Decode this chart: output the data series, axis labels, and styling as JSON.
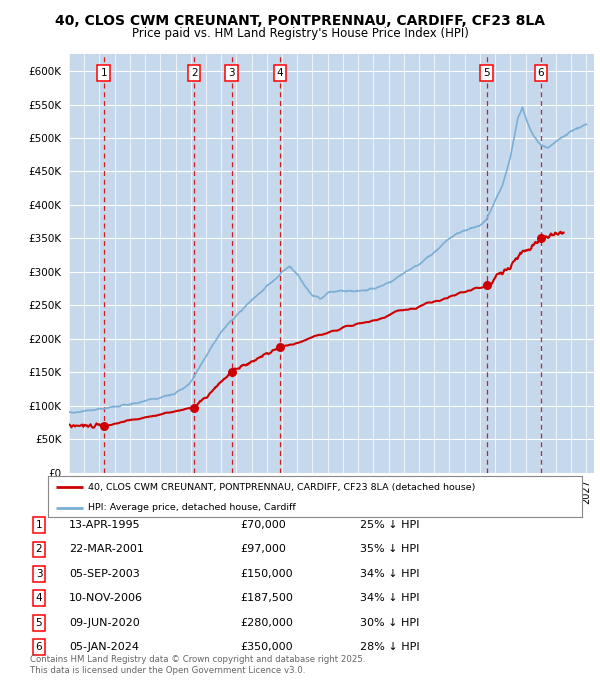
{
  "title_line1": "40, CLOS CWM CREUNANT, PONTPRENNAU, CARDIFF, CF23 8LA",
  "title_line2": "Price paid vs. HM Land Registry's House Price Index (HPI)",
  "ylabel_ticks": [
    "£0",
    "£50K",
    "£100K",
    "£150K",
    "£200K",
    "£250K",
    "£300K",
    "£350K",
    "£400K",
    "£450K",
    "£500K",
    "£550K",
    "£600K"
  ],
  "ytick_values": [
    0,
    50000,
    100000,
    150000,
    200000,
    250000,
    300000,
    350000,
    400000,
    450000,
    500000,
    550000,
    600000
  ],
  "ylim": [
    0,
    625000
  ],
  "xlim_start": 1993.0,
  "xlim_end": 2027.5,
  "transactions": [
    {
      "id": 1,
      "date_str": "13-APR-1995",
      "year": 1995.28,
      "price": 70000,
      "pct": "25%",
      "label": "1"
    },
    {
      "id": 2,
      "date_str": "22-MAR-2001",
      "year": 2001.22,
      "price": 97000,
      "pct": "35%",
      "label": "2"
    },
    {
      "id": 3,
      "date_str": "05-SEP-2003",
      "year": 2003.68,
      "price": 150000,
      "pct": "34%",
      "label": "3"
    },
    {
      "id": 4,
      "date_str": "10-NOV-2006",
      "year": 2006.86,
      "price": 187500,
      "pct": "34%",
      "label": "4"
    },
    {
      "id": 5,
      "date_str": "09-JUN-2020",
      "year": 2020.44,
      "price": 280000,
      "pct": "30%",
      "label": "5"
    },
    {
      "id": 6,
      "date_str": "05-JAN-2024",
      "year": 2024.01,
      "price": 350000,
      "pct": "28%",
      "label": "6"
    }
  ],
  "hpi_line_color": "#7bafd4",
  "price_line_color": "#cc0000",
  "transaction_marker_color": "#cc0000",
  "dashed_line_color": "#cc0000",
  "legend1_label": "40, CLOS CWM CREUNANT, PONTPRENNAU, CARDIFF, CF23 8LA (detached house)",
  "legend2_label": "HPI: Average price, detached house, Cardiff",
  "footer": "Contains HM Land Registry data © Crown copyright and database right 2025.\nThis data is licensed under the Open Government Licence v3.0.",
  "plot_bg_color": "#dce9f5",
  "hatch_color": "#c5d8ec"
}
